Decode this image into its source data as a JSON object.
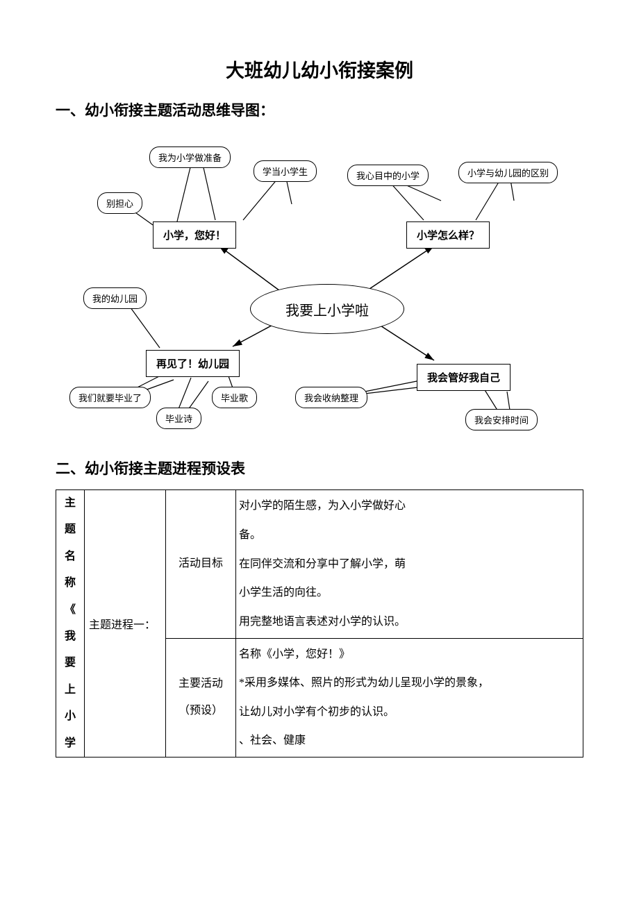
{
  "title": "大班幼儿幼小衔接案例",
  "section1_heading": "一、幼小衔接主题活动思维导图：",
  "section2_heading": "二、幼小衔接主题进程预设表",
  "diagram": {
    "central": "我要上小学啦",
    "rect_nodes": {
      "n1": "小学，您好！",
      "n2": "小学怎么样？",
      "n3": "再见了！幼儿园",
      "n4": "我会管好我自己"
    },
    "bubbles": {
      "b1": "我为小学做准备",
      "b2": "学当小学生",
      "b3": "别担心",
      "b4": "我心目中的小学",
      "b5": "小学与幼儿园的区别",
      "b6": "我的幼儿园",
      "b7": "我们就要毕业了",
      "b8": "毕业诗",
      "b9": "毕业歌",
      "b10": "我会收纳整理",
      "b11": "我会安排时间"
    }
  },
  "table": {
    "col1": "主题名称《我要上小学",
    "col2": "主题进程一：",
    "row1_col3": "活动目标",
    "row1_col4_lines": [
      "对小学的陌生感，为入小学做好心",
      "备。",
      "在同伴交流和分享中了解小学，萌",
      "小学生活的向往。",
      "用完整地语言表述对小学的认识。"
    ],
    "row2_col3_l1": "主要活动",
    "row2_col3_l2": "（预设）",
    "row2_col4_lines": [
      "名称《小学，您好！》",
      "*采用多媒体、照片的形式为幼儿呈现小学的景象，",
      "让幼儿对小学有个初步的认识。",
      "、社会、健康"
    ]
  },
  "colors": {
    "text": "#000000",
    "border": "#000000",
    "bg": "#ffffff"
  }
}
